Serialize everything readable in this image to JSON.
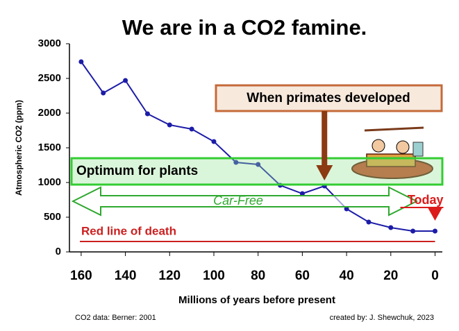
{
  "chart_data": {
    "type": "line",
    "title": "We are in a CO2 famine.",
    "x_label": "Millions of years before present",
    "y_label": "Atmospheric CO2 (ppm)",
    "x": [
      160,
      150,
      140,
      130,
      120,
      110,
      100,
      90,
      80,
      70,
      60,
      50,
      40,
      30,
      20,
      10,
      0
    ],
    "values": [
      2740,
      2290,
      2470,
      1990,
      1830,
      1770,
      1590,
      1290,
      1260,
      960,
      840,
      950,
      620,
      430,
      350,
      300,
      300
    ],
    "color": "#1c1ca8",
    "xlim": [
      165.3,
      -3.3
    ],
    "xticks": [
      160,
      140,
      120,
      100,
      80,
      60,
      40,
      20,
      0
    ],
    "ylim": [
      0,
      3000
    ],
    "yticks": [
      0,
      500,
      1000,
      1500,
      2000,
      2500,
      3000
    ],
    "annotations": {
      "optimum": {
        "text": "Optimum for plants",
        "range": [
          970,
          1350
        ],
        "color": "#33cc33"
      },
      "primates": {
        "text": "When primates developed",
        "x": 50,
        "color": "#8b3a12"
      },
      "car_free": {
        "text": "Car-Free",
        "color": "#2fa82f"
      },
      "death": {
        "text": "Red line of death",
        "y": 150,
        "color": "#cc2020"
      },
      "today": {
        "text": "Today",
        "x": 0,
        "color": "#dd1a1a"
      }
    },
    "footer_left": "CO2 data: Berner: 2001",
    "footer_right": "created by: J. Shewchuk, 2023"
  }
}
